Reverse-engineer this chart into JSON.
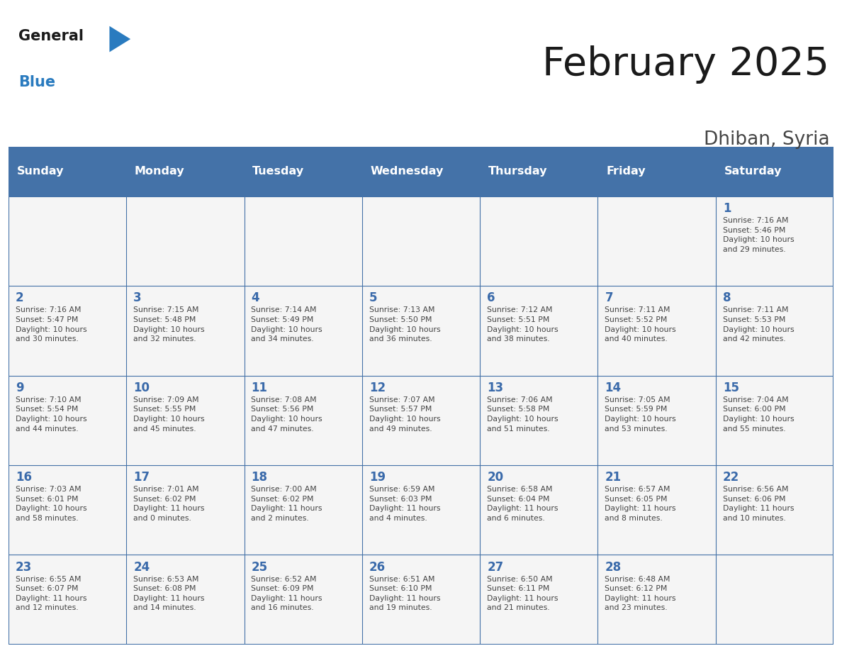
{
  "title": "February 2025",
  "subtitle": "Dhiban, Syria",
  "days_of_week": [
    "Sunday",
    "Monday",
    "Tuesday",
    "Wednesday",
    "Thursday",
    "Friday",
    "Saturday"
  ],
  "header_bg": "#4472a8",
  "header_text": "#ffffff",
  "cell_bg": "#f5f5f5",
  "border_color": "#4472a8",
  "day_num_color": "#3a6aaa",
  "info_color": "#444444",
  "title_color": "#1a1a1a",
  "subtitle_color": "#444444",
  "logo_black": "#1a1a1a",
  "logo_blue": "#2a7bbf",
  "calendar": [
    [
      null,
      null,
      null,
      null,
      null,
      null,
      1
    ],
    [
      2,
      3,
      4,
      5,
      6,
      7,
      8
    ],
    [
      9,
      10,
      11,
      12,
      13,
      14,
      15
    ],
    [
      16,
      17,
      18,
      19,
      20,
      21,
      22
    ],
    [
      23,
      24,
      25,
      26,
      27,
      28,
      null
    ]
  ],
  "sunrise_data": {
    "1": "Sunrise: 7:16 AM\nSunset: 5:46 PM\nDaylight: 10 hours\nand 29 minutes.",
    "2": "Sunrise: 7:16 AM\nSunset: 5:47 PM\nDaylight: 10 hours\nand 30 minutes.",
    "3": "Sunrise: 7:15 AM\nSunset: 5:48 PM\nDaylight: 10 hours\nand 32 minutes.",
    "4": "Sunrise: 7:14 AM\nSunset: 5:49 PM\nDaylight: 10 hours\nand 34 minutes.",
    "5": "Sunrise: 7:13 AM\nSunset: 5:50 PM\nDaylight: 10 hours\nand 36 minutes.",
    "6": "Sunrise: 7:12 AM\nSunset: 5:51 PM\nDaylight: 10 hours\nand 38 minutes.",
    "7": "Sunrise: 7:11 AM\nSunset: 5:52 PM\nDaylight: 10 hours\nand 40 minutes.",
    "8": "Sunrise: 7:11 AM\nSunset: 5:53 PM\nDaylight: 10 hours\nand 42 minutes.",
    "9": "Sunrise: 7:10 AM\nSunset: 5:54 PM\nDaylight: 10 hours\nand 44 minutes.",
    "10": "Sunrise: 7:09 AM\nSunset: 5:55 PM\nDaylight: 10 hours\nand 45 minutes.",
    "11": "Sunrise: 7:08 AM\nSunset: 5:56 PM\nDaylight: 10 hours\nand 47 minutes.",
    "12": "Sunrise: 7:07 AM\nSunset: 5:57 PM\nDaylight: 10 hours\nand 49 minutes.",
    "13": "Sunrise: 7:06 AM\nSunset: 5:58 PM\nDaylight: 10 hours\nand 51 minutes.",
    "14": "Sunrise: 7:05 AM\nSunset: 5:59 PM\nDaylight: 10 hours\nand 53 minutes.",
    "15": "Sunrise: 7:04 AM\nSunset: 6:00 PM\nDaylight: 10 hours\nand 55 minutes.",
    "16": "Sunrise: 7:03 AM\nSunset: 6:01 PM\nDaylight: 10 hours\nand 58 minutes.",
    "17": "Sunrise: 7:01 AM\nSunset: 6:02 PM\nDaylight: 11 hours\nand 0 minutes.",
    "18": "Sunrise: 7:00 AM\nSunset: 6:02 PM\nDaylight: 11 hours\nand 2 minutes.",
    "19": "Sunrise: 6:59 AM\nSunset: 6:03 PM\nDaylight: 11 hours\nand 4 minutes.",
    "20": "Sunrise: 6:58 AM\nSunset: 6:04 PM\nDaylight: 11 hours\nand 6 minutes.",
    "21": "Sunrise: 6:57 AM\nSunset: 6:05 PM\nDaylight: 11 hours\nand 8 minutes.",
    "22": "Sunrise: 6:56 AM\nSunset: 6:06 PM\nDaylight: 11 hours\nand 10 minutes.",
    "23": "Sunrise: 6:55 AM\nSunset: 6:07 PM\nDaylight: 11 hours\nand 12 minutes.",
    "24": "Sunrise: 6:53 AM\nSunset: 6:08 PM\nDaylight: 11 hours\nand 14 minutes.",
    "25": "Sunrise: 6:52 AM\nSunset: 6:09 PM\nDaylight: 11 hours\nand 16 minutes.",
    "26": "Sunrise: 6:51 AM\nSunset: 6:10 PM\nDaylight: 11 hours\nand 19 minutes.",
    "27": "Sunrise: 6:50 AM\nSunset: 6:11 PM\nDaylight: 11 hours\nand 21 minutes.",
    "28": "Sunrise: 6:48 AM\nSunset: 6:12 PM\nDaylight: 11 hours\nand 23 minutes."
  }
}
